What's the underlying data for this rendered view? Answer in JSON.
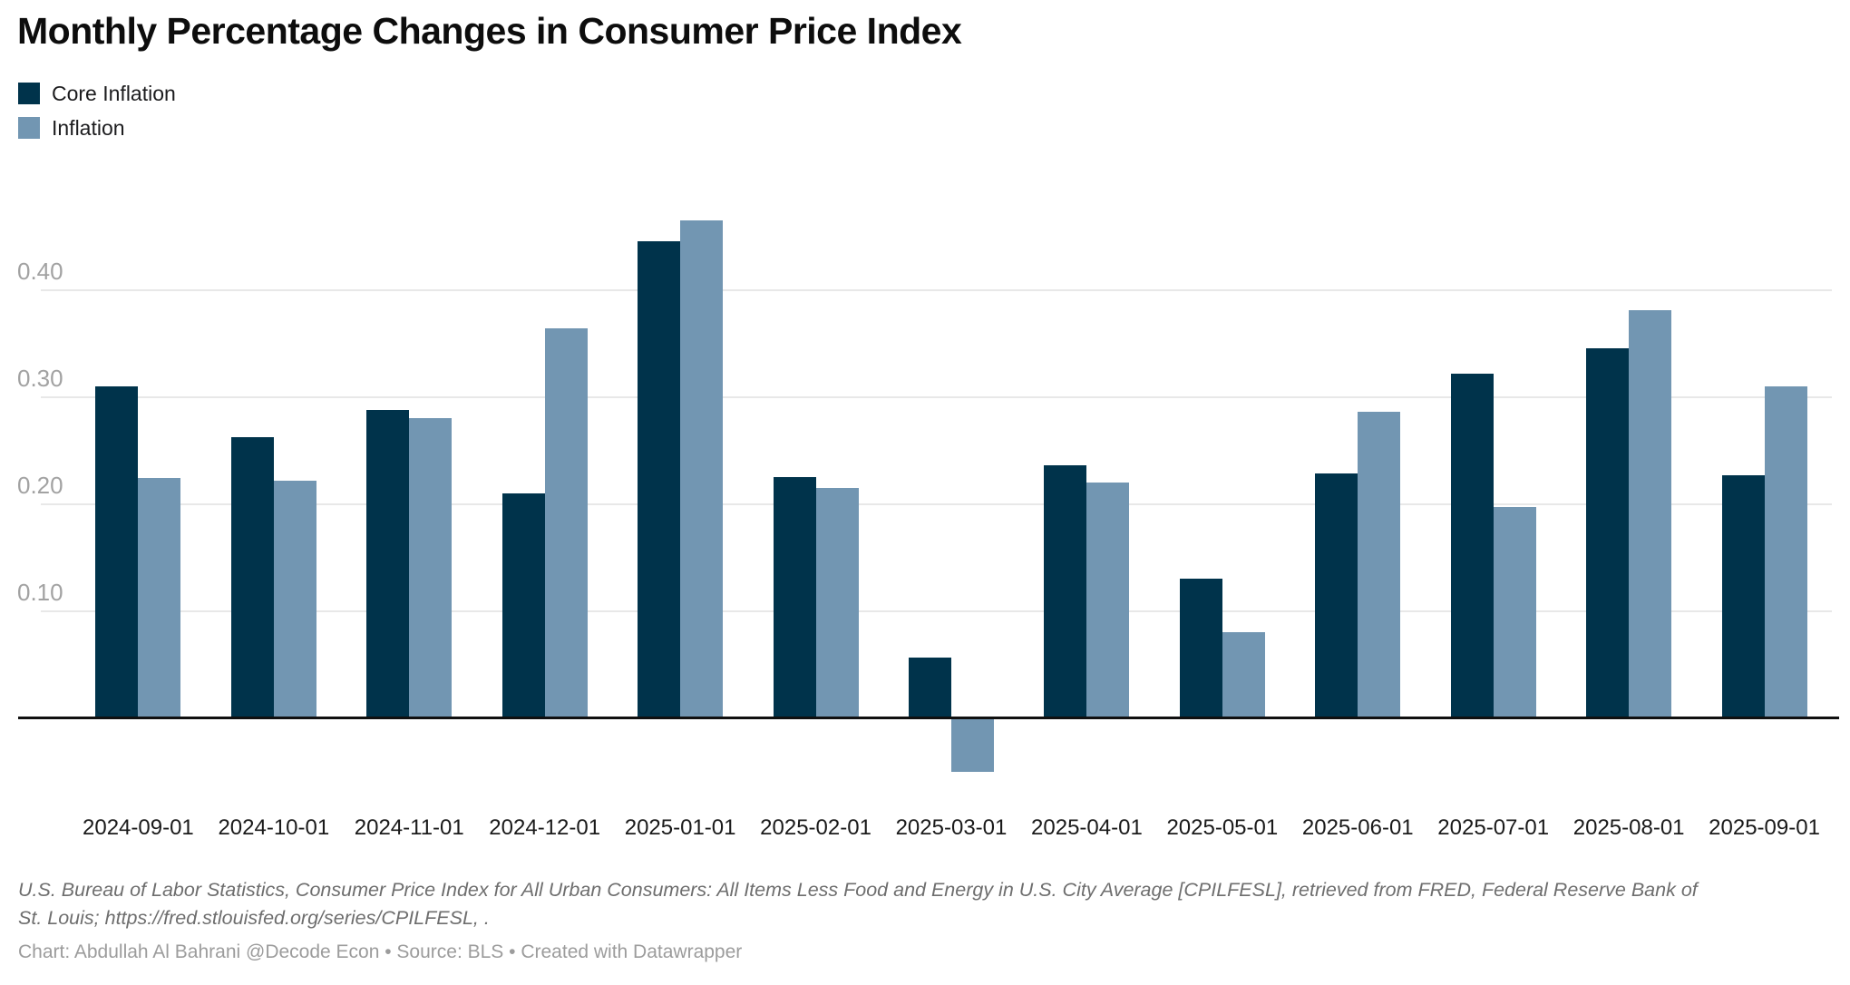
{
  "title": "Monthly Percentage Changes in Consumer Price Index",
  "legend": {
    "items": [
      {
        "label": "Core Inflation",
        "color": "#00334b"
      },
      {
        "label": "Inflation",
        "color": "#7296b2"
      }
    ]
  },
  "chart_data": {
    "type": "bar",
    "title": "Monthly Percentage Changes in Consumer Price Index",
    "categories": [
      "2024-09-01",
      "2024-10-01",
      "2024-11-01",
      "2024-12-01",
      "2025-01-01",
      "2025-02-01",
      "2025-03-01",
      "2025-04-01",
      "2025-05-01",
      "2025-06-01",
      "2025-07-01",
      "2025-08-01",
      "2025-09-01"
    ],
    "series": [
      {
        "name": "Core Inflation",
        "color": "#00334b",
        "values": [
          0.31,
          0.262,
          0.288,
          0.21,
          0.445,
          0.225,
          0.056,
          0.236,
          0.13,
          0.228,
          0.322,
          0.345,
          0.227
        ]
      },
      {
        "name": "Inflation",
        "color": "#7296b2",
        "values": [
          0.224,
          0.222,
          0.28,
          0.364,
          0.465,
          0.215,
          -0.05,
          0.22,
          0.08,
          0.286,
          0.197,
          0.381,
          0.31
        ]
      }
    ],
    "xlabel": "",
    "ylabel": "",
    "ylim": [
      -0.07,
      0.48
    ],
    "y_ticks": [
      0.1,
      0.2,
      0.3,
      0.4
    ],
    "y_tick_labels": [
      "0.10",
      "0.20",
      "0.30",
      "0.40"
    ],
    "grid": true,
    "legend_position": "top-left",
    "baseline": 0
  },
  "footer": {
    "source_line1": "U.S. Bureau of Labor Statistics, Consumer Price Index for All Urban Consumers: All Items Less Food and Energy in U.S. City Average [CPILFESL], retrieved from FRED, Federal Reserve Bank of",
    "source_line2": "St. Louis; https://fred.stlouisfed.org/series/CPILFESL, .",
    "credit": "Chart: Abdullah Al Bahrani @Decode Econ • Source: BLS • Created with Datawrapper"
  }
}
